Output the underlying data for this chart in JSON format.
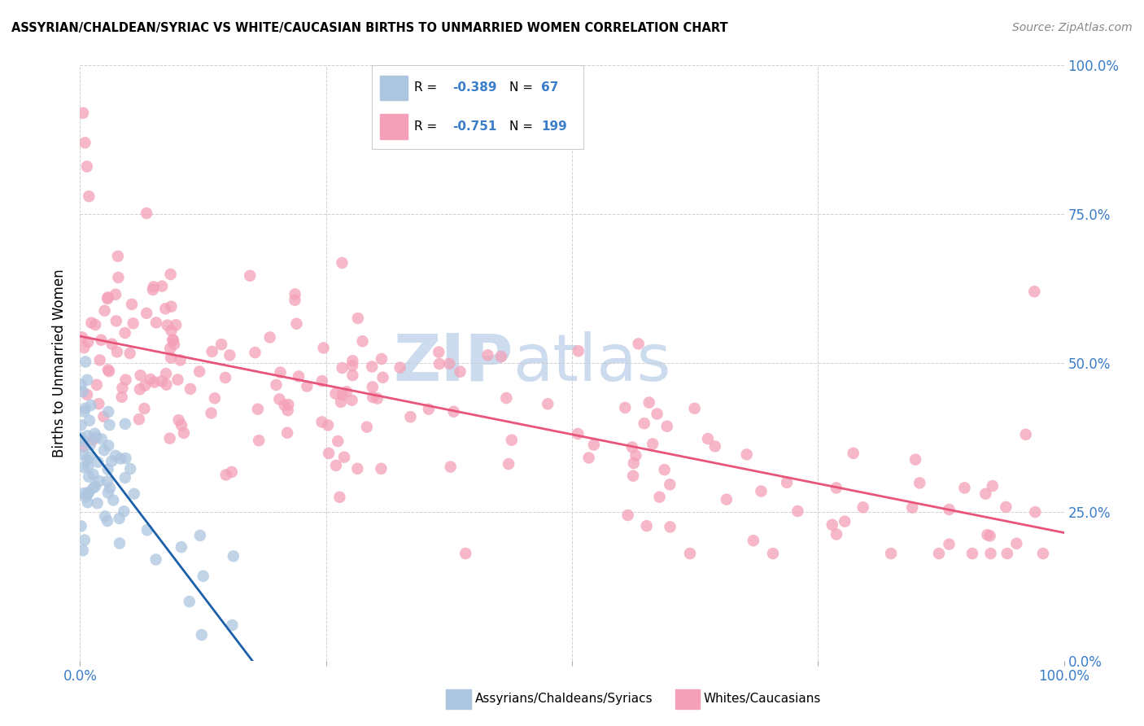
{
  "title": "ASSYRIAN/CHALDEAN/SYRIAC VS WHITE/CAUCASIAN BIRTHS TO UNMARRIED WOMEN CORRELATION CHART",
  "source": "Source: ZipAtlas.com",
  "ylabel": "Births to Unmarried Women",
  "legend1_r": "-0.389",
  "legend1_n": "67",
  "legend2_r": "-0.751",
  "legend2_n": "199",
  "blue_color": "#adc6e0",
  "pink_color": "#f4a0b8",
  "blue_line_color": "#1a5fa8",
  "pink_line_color": "#e8547a",
  "axis_label_color": "#3a7dc9",
  "watermark_zip": "ZIP",
  "watermark_atlas": "atlas",
  "yticks": [
    "0.0%",
    "25.0%",
    "50.0%",
    "75.0%",
    "100.0%"
  ],
  "ytick_vals": [
    0.0,
    0.25,
    0.5,
    0.75,
    1.0
  ],
  "blue_trend_x": [
    0.0,
    0.175
  ],
  "blue_trend_y": [
    0.38,
    0.0
  ],
  "pink_trend_x": [
    0.0,
    1.0
  ],
  "pink_trend_y": [
    0.545,
    0.215
  ],
  "xlim": [
    0.0,
    1.0
  ],
  "ylim": [
    0.0,
    1.0
  ],
  "background_color": "#ffffff",
  "grid_color": "#cccccc",
  "watermark_color": "#ccdcee"
}
